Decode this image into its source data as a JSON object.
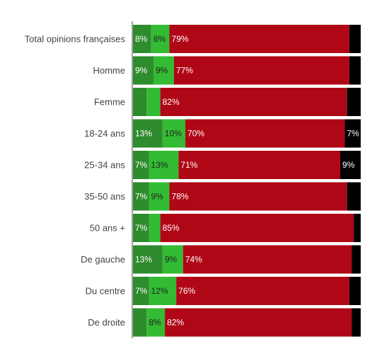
{
  "chart_data": {
    "type": "bar",
    "orientation": "horizontal",
    "stacked": true,
    "normalized": true,
    "xlim": [
      0,
      100
    ],
    "grid": false,
    "legend": "none",
    "categories": [
      "Total opinions françaises",
      "Homme",
      "Femme",
      "18-24 ans",
      "25-34 ans",
      "35-50 ans",
      "50 ans +",
      "De gauche",
      "Du centre",
      "De droite"
    ],
    "series": [
      {
        "color": "#2e8b2e",
        "text_color": "#ffffff",
        "values": [
          8,
          9,
          6,
          13,
          7,
          7,
          7,
          13,
          7,
          6
        ],
        "labels": [
          "8%",
          "9%",
          "",
          "13%",
          "7%",
          "7%",
          "7%",
          "13%",
          "7%",
          ""
        ]
      },
      {
        "color": "#33bb33",
        "text_color": "#222222",
        "values": [
          8,
          9,
          6,
          10,
          13,
          9,
          5,
          9,
          12,
          8
        ],
        "labels": [
          "8%",
          "9%",
          "",
          "10%",
          "13%",
          "9%",
          "",
          "9%",
          "12%",
          "8%"
        ]
      },
      {
        "color": "#b00716",
        "text_color": "#ffffff",
        "values": [
          79,
          77,
          82,
          70,
          71,
          78,
          85,
          74,
          76,
          82
        ],
        "labels": [
          "79%",
          "77%",
          "82%",
          "70%",
          "71%",
          "78%",
          "85%",
          "74%",
          "76%",
          "82%"
        ]
      },
      {
        "color": "#000000",
        "text_color": "#ffffff",
        "values": [
          5,
          5,
          6,
          7,
          9,
          6,
          3,
          4,
          5,
          4
        ],
        "labels": [
          "",
          "",
          "",
          "7%",
          "9%",
          "",
          "",
          "",
          "",
          ""
        ]
      }
    ]
  }
}
